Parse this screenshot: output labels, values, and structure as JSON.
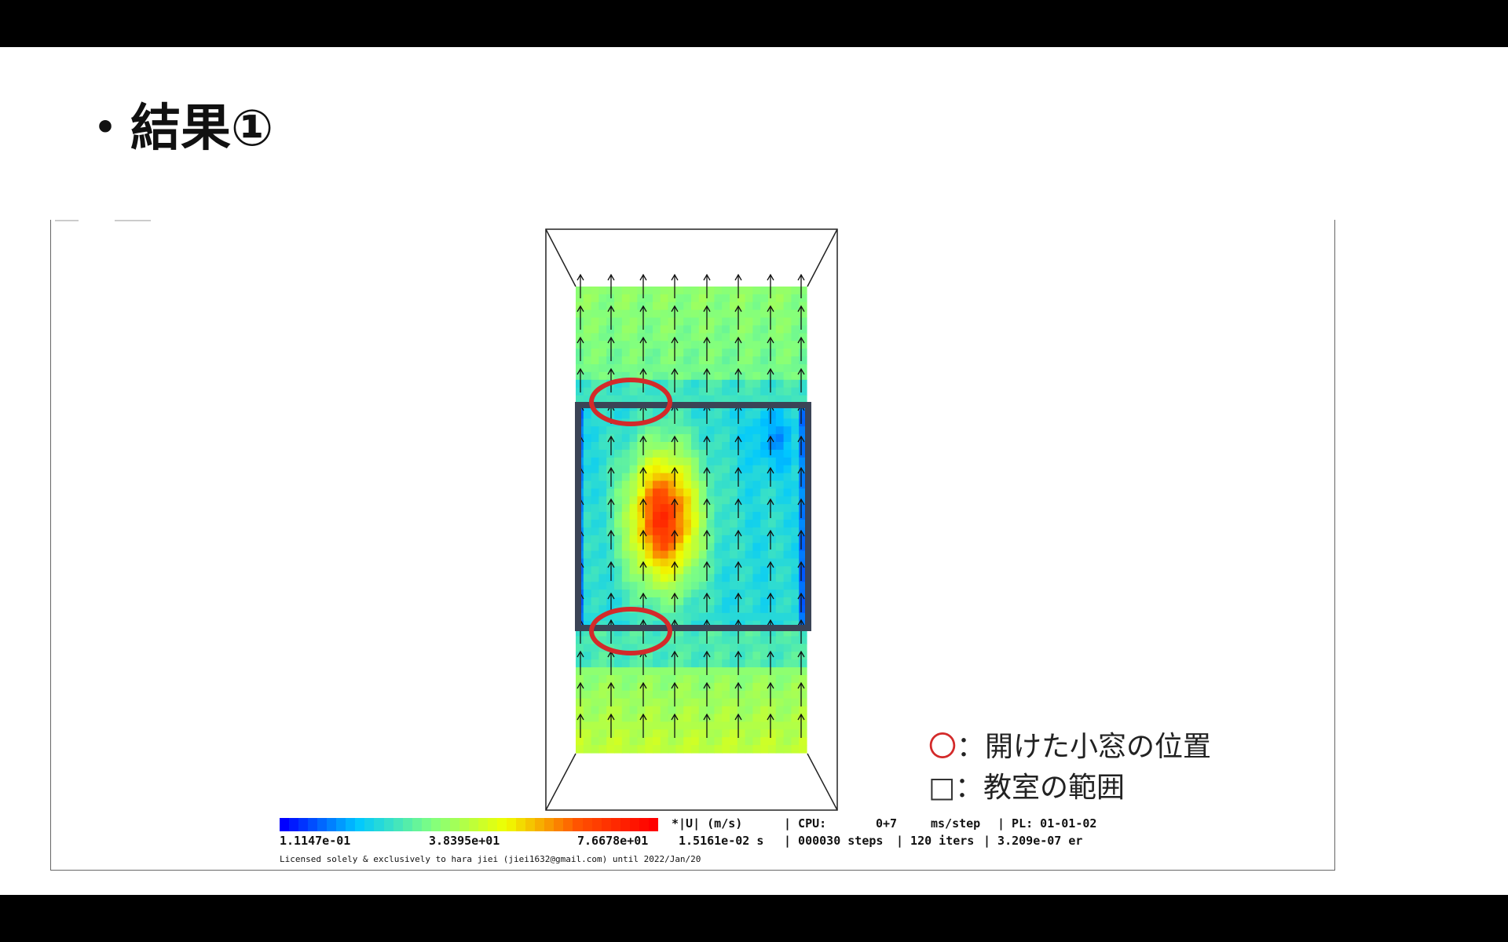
{
  "slide": {
    "title": "・結果①"
  },
  "legend": {
    "open_window_symbol": "〇",
    "open_window_label": "：開けた小窓の位置",
    "classroom_symbol": "□",
    "classroom_label": "：教室の範囲",
    "circle_color": "#d32a2a",
    "square_color": "#3b4456"
  },
  "simulation": {
    "colorbar_min": "1.1147e-01",
    "colorbar_mid": "3.8395e+01",
    "colorbar_max": "7.6678e+01",
    "field_label": "*|U| (m/s)",
    "time": "1.5161e-02 s",
    "cpu_label": "| CPU:",
    "cpu_value": "0+7",
    "cpu_unit": "ms/step",
    "steps": "| 000030 steps",
    "iters": "| 120 iters",
    "pl": "| PL: 01-01-02",
    "error": "| 3.209e-07 er",
    "license": "Licensed solely & exclusively to hara jiei (jiei1632@gmail.com) until 2022/Jan/20",
    "colormap": [
      "#0000ff",
      "#00c8ff",
      "#80ff80",
      "#f0ff00",
      "#ff5000",
      "#ff0000"
    ]
  }
}
